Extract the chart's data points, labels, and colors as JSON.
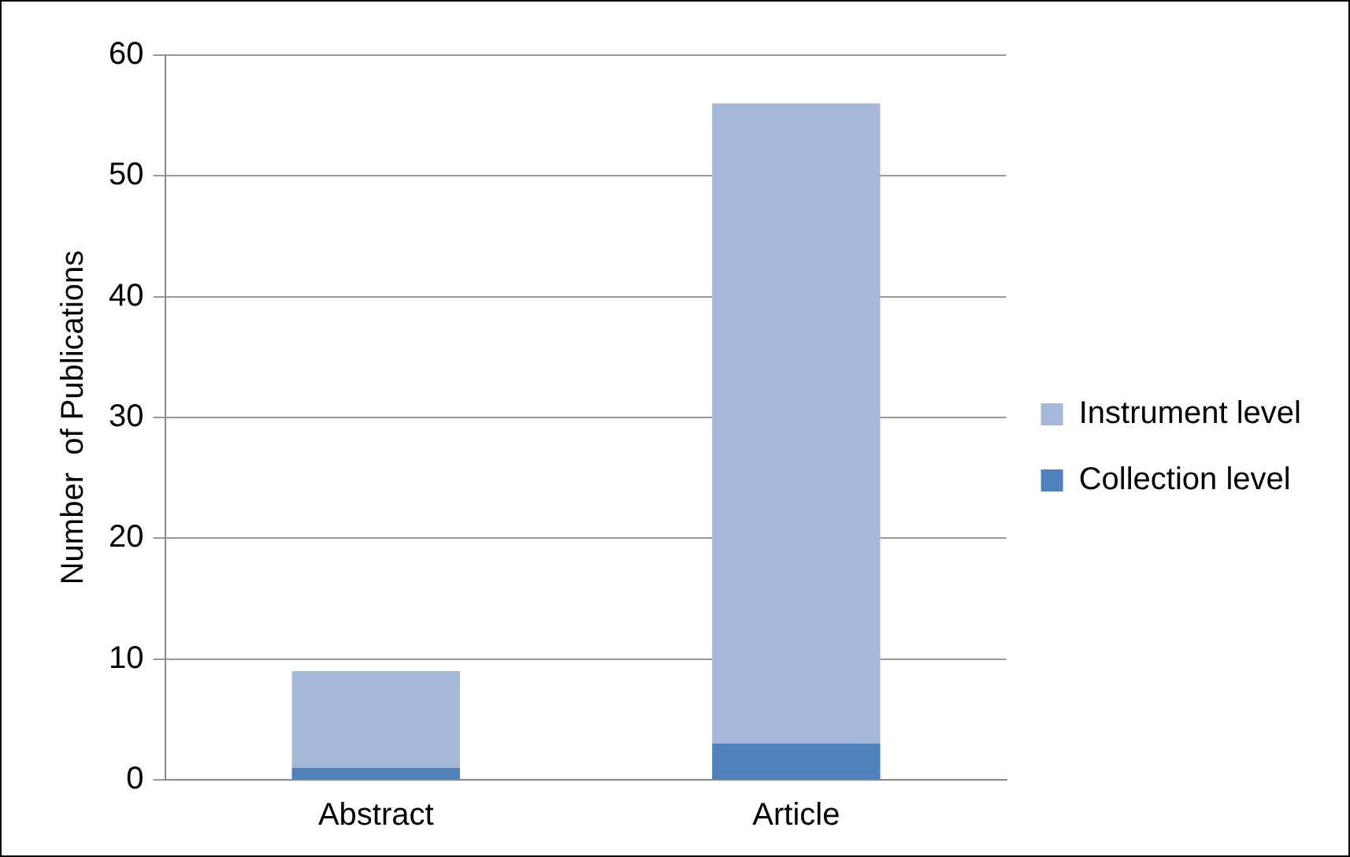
{
  "chart_data": {
    "type": "bar",
    "ylabel": "Number  of Publications",
    "categories": [
      "Abstract",
      "Article"
    ],
    "stacked": true,
    "series": [
      {
        "name": "Collection level",
        "color": "#4f81bd",
        "values": [
          1,
          3
        ]
      },
      {
        "name": "Instrument level",
        "color": "#a5b8d9",
        "values": [
          8,
          53
        ]
      }
    ],
    "ylim": [
      0,
      60
    ],
    "yticks": [
      0,
      10,
      20,
      30,
      40,
      50,
      60
    ],
    "grid": "y",
    "legend": "right"
  }
}
